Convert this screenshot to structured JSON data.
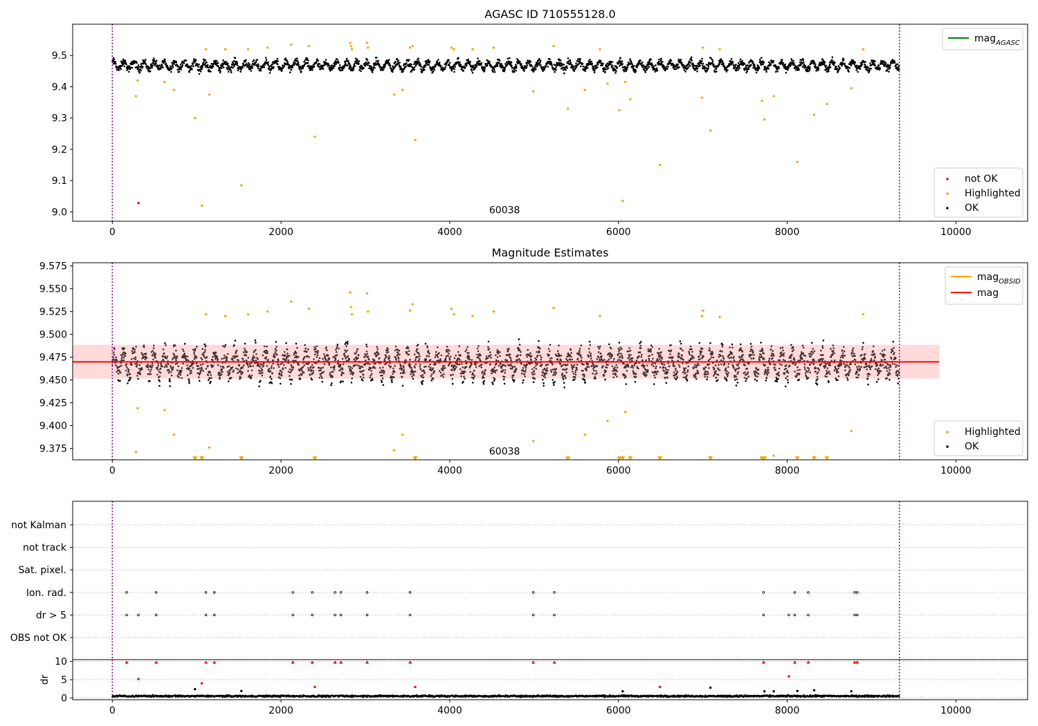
{
  "colors": {
    "ok": "#000000",
    "highlighted": "#ffa500",
    "not_ok": "#ff0000",
    "mag_line": "#ff0000",
    "mag_band": "#ffc8c8",
    "agasc_line": "#008000",
    "obsid_line": "#ffa500",
    "boundary": "#800080"
  },
  "chart_data": [
    {
      "type": "scatter",
      "title": "AGASC ID 710555128.0",
      "xlim": [
        -470,
        10850
      ],
      "ylim": [
        8.97,
        9.6
      ],
      "xticks": [
        0,
        2000,
        4000,
        6000,
        8000,
        10000
      ],
      "yticks": [
        9.0,
        9.1,
        9.2,
        9.3,
        9.4,
        9.5
      ],
      "ytick_labels": [
        "9.0",
        "9.1",
        "9.2",
        "9.3",
        "9.4",
        "9.5"
      ],
      "grid": false,
      "obsid_boundaries": [
        0,
        9330
      ],
      "obsid_label": {
        "text": "60038",
        "x": 4650,
        "y": 8.995
      },
      "ok_band": {
        "center": 9.468,
        "half_width": 0.018,
        "x_range": [
          0,
          9330
        ],
        "modulation_amplitude": 0.012
      },
      "series": [
        {
          "name": "not OK",
          "color_key": "not_ok",
          "points": [
            [
              310,
              9.028
            ]
          ]
        },
        {
          "name": "Highlighted",
          "color_key": "highlighted",
          "points": [
            [
              280,
              9.37
            ],
            [
              300,
              9.42
            ],
            [
              620,
              9.415
            ],
            [
              730,
              9.39
            ],
            [
              980,
              9.3
            ],
            [
              1060,
              9.02
            ],
            [
              1110,
              9.52
            ],
            [
              1150,
              9.375
            ],
            [
              1340,
              9.52
            ],
            [
              1530,
              9.085
            ],
            [
              1610,
              9.52
            ],
            [
              1840,
              9.525
            ],
            [
              2120,
              9.535
            ],
            [
              2330,
              9.53
            ],
            [
              2400,
              9.24
            ],
            [
              2820,
              9.54
            ],
            [
              2830,
              9.53
            ],
            [
              2840,
              9.52
            ],
            [
              3020,
              9.54
            ],
            [
              3030,
              9.525
            ],
            [
              3340,
              9.375
            ],
            [
              3440,
              9.39
            ],
            [
              3530,
              9.525
            ],
            [
              3560,
              9.53
            ],
            [
              3590,
              9.23
            ],
            [
              4020,
              9.525
            ],
            [
              4050,
              9.52
            ],
            [
              4270,
              9.52
            ],
            [
              4520,
              9.525
            ],
            [
              4990,
              9.385
            ],
            [
              5230,
              9.53
            ],
            [
              5400,
              9.33
            ],
            [
              5600,
              9.39
            ],
            [
              5780,
              9.52
            ],
            [
              5870,
              9.41
            ],
            [
              6010,
              9.325
            ],
            [
              6050,
              9.035
            ],
            [
              6080,
              9.415
            ],
            [
              6140,
              9.36
            ],
            [
              6490,
              9.15
            ],
            [
              6990,
              9.365
            ],
            [
              7000,
              9.525
            ],
            [
              7090,
              9.26
            ],
            [
              7200,
              9.52
            ],
            [
              7700,
              9.355
            ],
            [
              7730,
              9.295
            ],
            [
              7840,
              9.37
            ],
            [
              8120,
              9.16
            ],
            [
              8320,
              9.31
            ],
            [
              8470,
              9.345
            ],
            [
              8760,
              9.395
            ],
            [
              8900,
              9.52
            ]
          ]
        }
      ],
      "legend_lines": [
        {
          "label": "mag",
          "subscript": "AGASC",
          "color_key": "agasc_line"
        }
      ],
      "legend_markers": [
        {
          "label": "not OK",
          "color_key": "not_ok"
        },
        {
          "label": "Highlighted",
          "color_key": "highlighted"
        },
        {
          "label": "OK",
          "color_key": "ok"
        }
      ]
    },
    {
      "type": "scatter",
      "title": "Magnitude Estimates",
      "xlim": [
        -470,
        10850
      ],
      "ylim": [
        9.3625,
        9.5785
      ],
      "xticks": [
        0,
        2000,
        4000,
        6000,
        8000,
        10000
      ],
      "yticks": [
        9.375,
        9.4,
        9.425,
        9.45,
        9.475,
        9.5,
        9.525,
        9.55,
        9.575
      ],
      "ytick_labels": [
        "9.375",
        "9.400",
        "9.425",
        "9.450",
        "9.475",
        "9.500",
        "9.525",
        "9.550",
        "9.575"
      ],
      "grid": false,
      "obsid_boundaries": [
        0,
        9330
      ],
      "obsid_label": {
        "text": "60038",
        "x": 4650,
        "y": 9.368
      },
      "mag": {
        "value": 9.4698,
        "band": [
          9.4515,
          9.4885
        ],
        "x_range": [
          -470,
          9800
        ]
      },
      "ok_band": {
        "center": 9.468,
        "half_width": 0.018,
        "x_range": [
          0,
          9330
        ],
        "modulation_amplitude": 0.012
      },
      "series": [
        {
          "name": "Highlighted",
          "color_key": "highlighted",
          "points": [
            [
              280,
              9.371
            ],
            [
              300,
              9.419
            ],
            [
              620,
              9.417
            ],
            [
              730,
              9.39
            ],
            [
              1110,
              9.522
            ],
            [
              1150,
              9.376
            ],
            [
              1340,
              9.52
            ],
            [
              1610,
              9.522
            ],
            [
              1840,
              9.525
            ],
            [
              2120,
              9.536
            ],
            [
              2330,
              9.528
            ],
            [
              2820,
              9.546
            ],
            [
              2830,
              9.53
            ],
            [
              2840,
              9.522
            ],
            [
              3020,
              9.545
            ],
            [
              3030,
              9.525
            ],
            [
              3340,
              9.373
            ],
            [
              3440,
              9.39
            ],
            [
              3530,
              9.526
            ],
            [
              3560,
              9.533
            ],
            [
              4020,
              9.528
            ],
            [
              4050,
              9.522
            ],
            [
              4270,
              9.52
            ],
            [
              4520,
              9.525
            ],
            [
              4990,
              9.383
            ],
            [
              5230,
              9.529
            ],
            [
              5600,
              9.39
            ],
            [
              5780,
              9.52
            ],
            [
              5870,
              9.405
            ],
            [
              6080,
              9.415
            ],
            [
              6990,
              9.52
            ],
            [
              7000,
              9.526
            ],
            [
              7200,
              9.519
            ],
            [
              7840,
              9.367
            ],
            [
              8760,
              9.394
            ],
            [
              8900,
              9.522
            ]
          ]
        },
        {
          "name": "Highlighted (below range)",
          "marker": "triangle-down",
          "color_key": "highlighted",
          "points": [
            [
              980,
              9.364
            ],
            [
              1060,
              9.364
            ],
            [
              1530,
              9.364
            ],
            [
              2400,
              9.364
            ],
            [
              3590,
              9.364
            ],
            [
              5400,
              9.364
            ],
            [
              6010,
              9.364
            ],
            [
              6050,
              9.364
            ],
            [
              6140,
              9.364
            ],
            [
              6490,
              9.364
            ],
            [
              7090,
              9.364
            ],
            [
              7700,
              9.364
            ],
            [
              7730,
              9.364
            ],
            [
              8120,
              9.364
            ],
            [
              8320,
              9.364
            ],
            [
              8470,
              9.364
            ]
          ]
        }
      ],
      "legend_lines": [
        {
          "label": "mag",
          "subscript": "OBSID",
          "color_key": "obsid_line"
        },
        {
          "label": "mag",
          "subscript": "",
          "color_key": "mag_line"
        }
      ],
      "legend_markers": [
        {
          "label": "Highlighted",
          "color_key": "highlighted"
        },
        {
          "label": "OK",
          "color_key": "ok"
        }
      ]
    },
    {
      "type": "scatter",
      "title": "",
      "xlim": [
        -470,
        10850
      ],
      "categories": [
        "not Kalman",
        "not track",
        "Sat. pixel.",
        "Ion. rad.",
        "dr > 5",
        "OBS not OK"
      ],
      "grid": true,
      "obsid_boundaries": [
        0,
        9330
      ],
      "flags": {
        "Ion. rad.": [
          170,
          520,
          1110,
          1210,
          2140,
          2370,
          2640,
          2710,
          3020,
          3530,
          4990,
          5240,
          7720,
          8090,
          8250,
          8800,
          8830
        ],
        "dr > 5": [
          170,
          310,
          520,
          1110,
          1210,
          2140,
          2370,
          2640,
          2710,
          3020,
          3530,
          4990,
          5240,
          7720,
          8020,
          8090,
          8250,
          8800,
          8830
        ]
      }
    },
    {
      "type": "scatter",
      "title": "",
      "xlim": [
        -470,
        10850
      ],
      "ylim": [
        -0.5,
        10.5
      ],
      "ylabel": "dr",
      "xticks": [
        0,
        2000,
        4000,
        6000,
        8000,
        10000
      ],
      "yticks": [
        0,
        5,
        10
      ],
      "ytick_labels": [
        "0",
        "5",
        "10"
      ],
      "grid": true,
      "obsid_boundaries": [
        0,
        9330
      ],
      "ok_band": {
        "center": 0.5,
        "half_width": 0.35,
        "x_range": [
          0,
          9330
        ],
        "modulation_amplitude": 0
      },
      "series": [
        {
          "name": "dr clipped",
          "marker": "triangle-up",
          "color_key": "not_ok",
          "points": [
            [
              170,
              9.8
            ],
            [
              520,
              9.8
            ],
            [
              1110,
              9.8
            ],
            [
              1210,
              9.8
            ],
            [
              2140,
              9.8
            ],
            [
              2370,
              9.8
            ],
            [
              2640,
              9.8
            ],
            [
              2710,
              9.8
            ],
            [
              3020,
              9.8
            ],
            [
              3530,
              9.8
            ],
            [
              4990,
              9.8
            ],
            [
              5240,
              9.8
            ],
            [
              7720,
              9.8
            ],
            [
              8090,
              9.8
            ],
            [
              8250,
              9.8
            ],
            [
              8800,
              9.8
            ],
            [
              8830,
              9.8
            ]
          ]
        },
        {
          "name": "dr",
          "color_key": "not_ok",
          "points": [
            [
              310,
              5.2
            ],
            [
              1060,
              4.0
            ],
            [
              2400,
              3.0
            ],
            [
              3590,
              3.0
            ],
            [
              6490,
              3.0
            ],
            [
              8020,
              5.9
            ]
          ]
        },
        {
          "name": "dr ok",
          "color_key": "ok",
          "points": [
            [
              980,
              2.4
            ],
            [
              1530,
              1.9
            ],
            [
              6050,
              1.8
            ],
            [
              7090,
              2.8
            ],
            [
              7730,
              1.8
            ],
            [
              7840,
              1.8
            ],
            [
              8120,
              1.9
            ],
            [
              8320,
              2.1
            ],
            [
              8760,
              1.8
            ]
          ]
        }
      ]
    }
  ]
}
